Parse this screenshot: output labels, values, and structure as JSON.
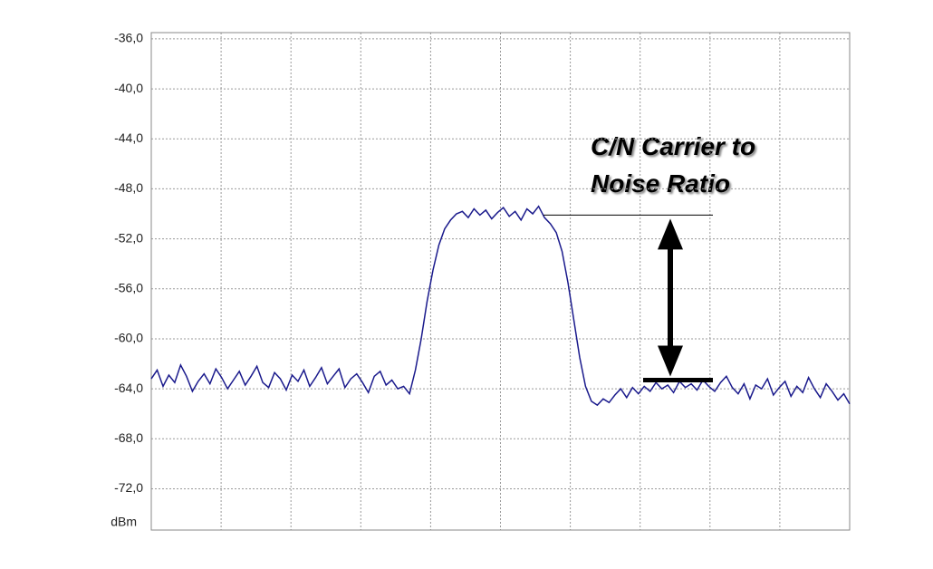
{
  "chart_data": {
    "type": "line",
    "annotation": [
      "C/N Carrier to",
      "Noise Ratio"
    ],
    "y_unit": "dBm",
    "series": [
      {
        "color": "#1a1a8c",
        "values": [
          -63.2,
          -62.5,
          -63.8,
          -62.9,
          -63.5,
          -62.1,
          -63.0,
          -64.2,
          -63.4,
          -62.8,
          -63.6,
          -62.4,
          -63.1,
          -64.0,
          -63.3,
          -62.6,
          -63.7,
          -63.0,
          -62.2,
          -63.5,
          -63.9,
          -62.7,
          -63.2,
          -64.1,
          -62.9,
          -63.4,
          -62.5,
          -63.8,
          -63.1,
          -62.3,
          -63.6,
          -63.0,
          -62.4,
          -63.9,
          -63.2,
          -62.8,
          -63.5,
          -64.3,
          -63.0,
          -62.6,
          -63.7,
          -63.3,
          -64.0,
          -63.8,
          -64.4,
          -62.5,
          -60.0,
          -57.0,
          -54.5,
          -52.5,
          -51.2,
          -50.5,
          -50.0,
          -49.8,
          -50.3,
          -49.6,
          -50.1,
          -49.7,
          -50.4,
          -49.9,
          -49.5,
          -50.2,
          -49.8,
          -50.5,
          -49.6,
          -50.0,
          -49.4,
          -50.3,
          -50.8,
          -51.5,
          -53.0,
          -55.5,
          -58.5,
          -61.5,
          -63.8,
          -65.0,
          -65.3,
          -64.8,
          -65.1,
          -64.5,
          -64.0,
          -64.7,
          -63.9,
          -64.4,
          -63.8,
          -64.2,
          -63.5,
          -64.0,
          -63.7,
          -64.3,
          -63.4,
          -63.9,
          -63.6,
          -64.1,
          -63.3,
          -63.8,
          -64.2,
          -63.5,
          -63.0,
          -63.9,
          -64.4,
          -63.6,
          -64.8,
          -63.7,
          -64.0,
          -63.2,
          -64.5,
          -63.9,
          -63.4,
          -64.6,
          -63.8,
          -64.3,
          -63.1,
          -64.0,
          -64.7,
          -63.6,
          -64.2,
          -64.9,
          -64.4,
          -65.2
        ]
      }
    ],
    "carrier_level": -50.1,
    "noise_level": -63.3,
    "ylim": [
      -75.3,
      -35.5
    ],
    "yticks": [
      {
        "value": -36,
        "label": "-36,0"
      },
      {
        "value": -40,
        "label": "-40,0"
      },
      {
        "value": -44,
        "label": "-44,0"
      },
      {
        "value": -48,
        "label": "-48,0"
      },
      {
        "value": -52,
        "label": "-52,0"
      },
      {
        "value": -56,
        "label": "-56,0"
      },
      {
        "value": -60,
        "label": "-60,0"
      },
      {
        "value": -64,
        "label": "-64,0"
      },
      {
        "value": -68,
        "label": "-68,0"
      },
      {
        "value": -72,
        "label": "-72,0"
      }
    ],
    "grid": true
  }
}
